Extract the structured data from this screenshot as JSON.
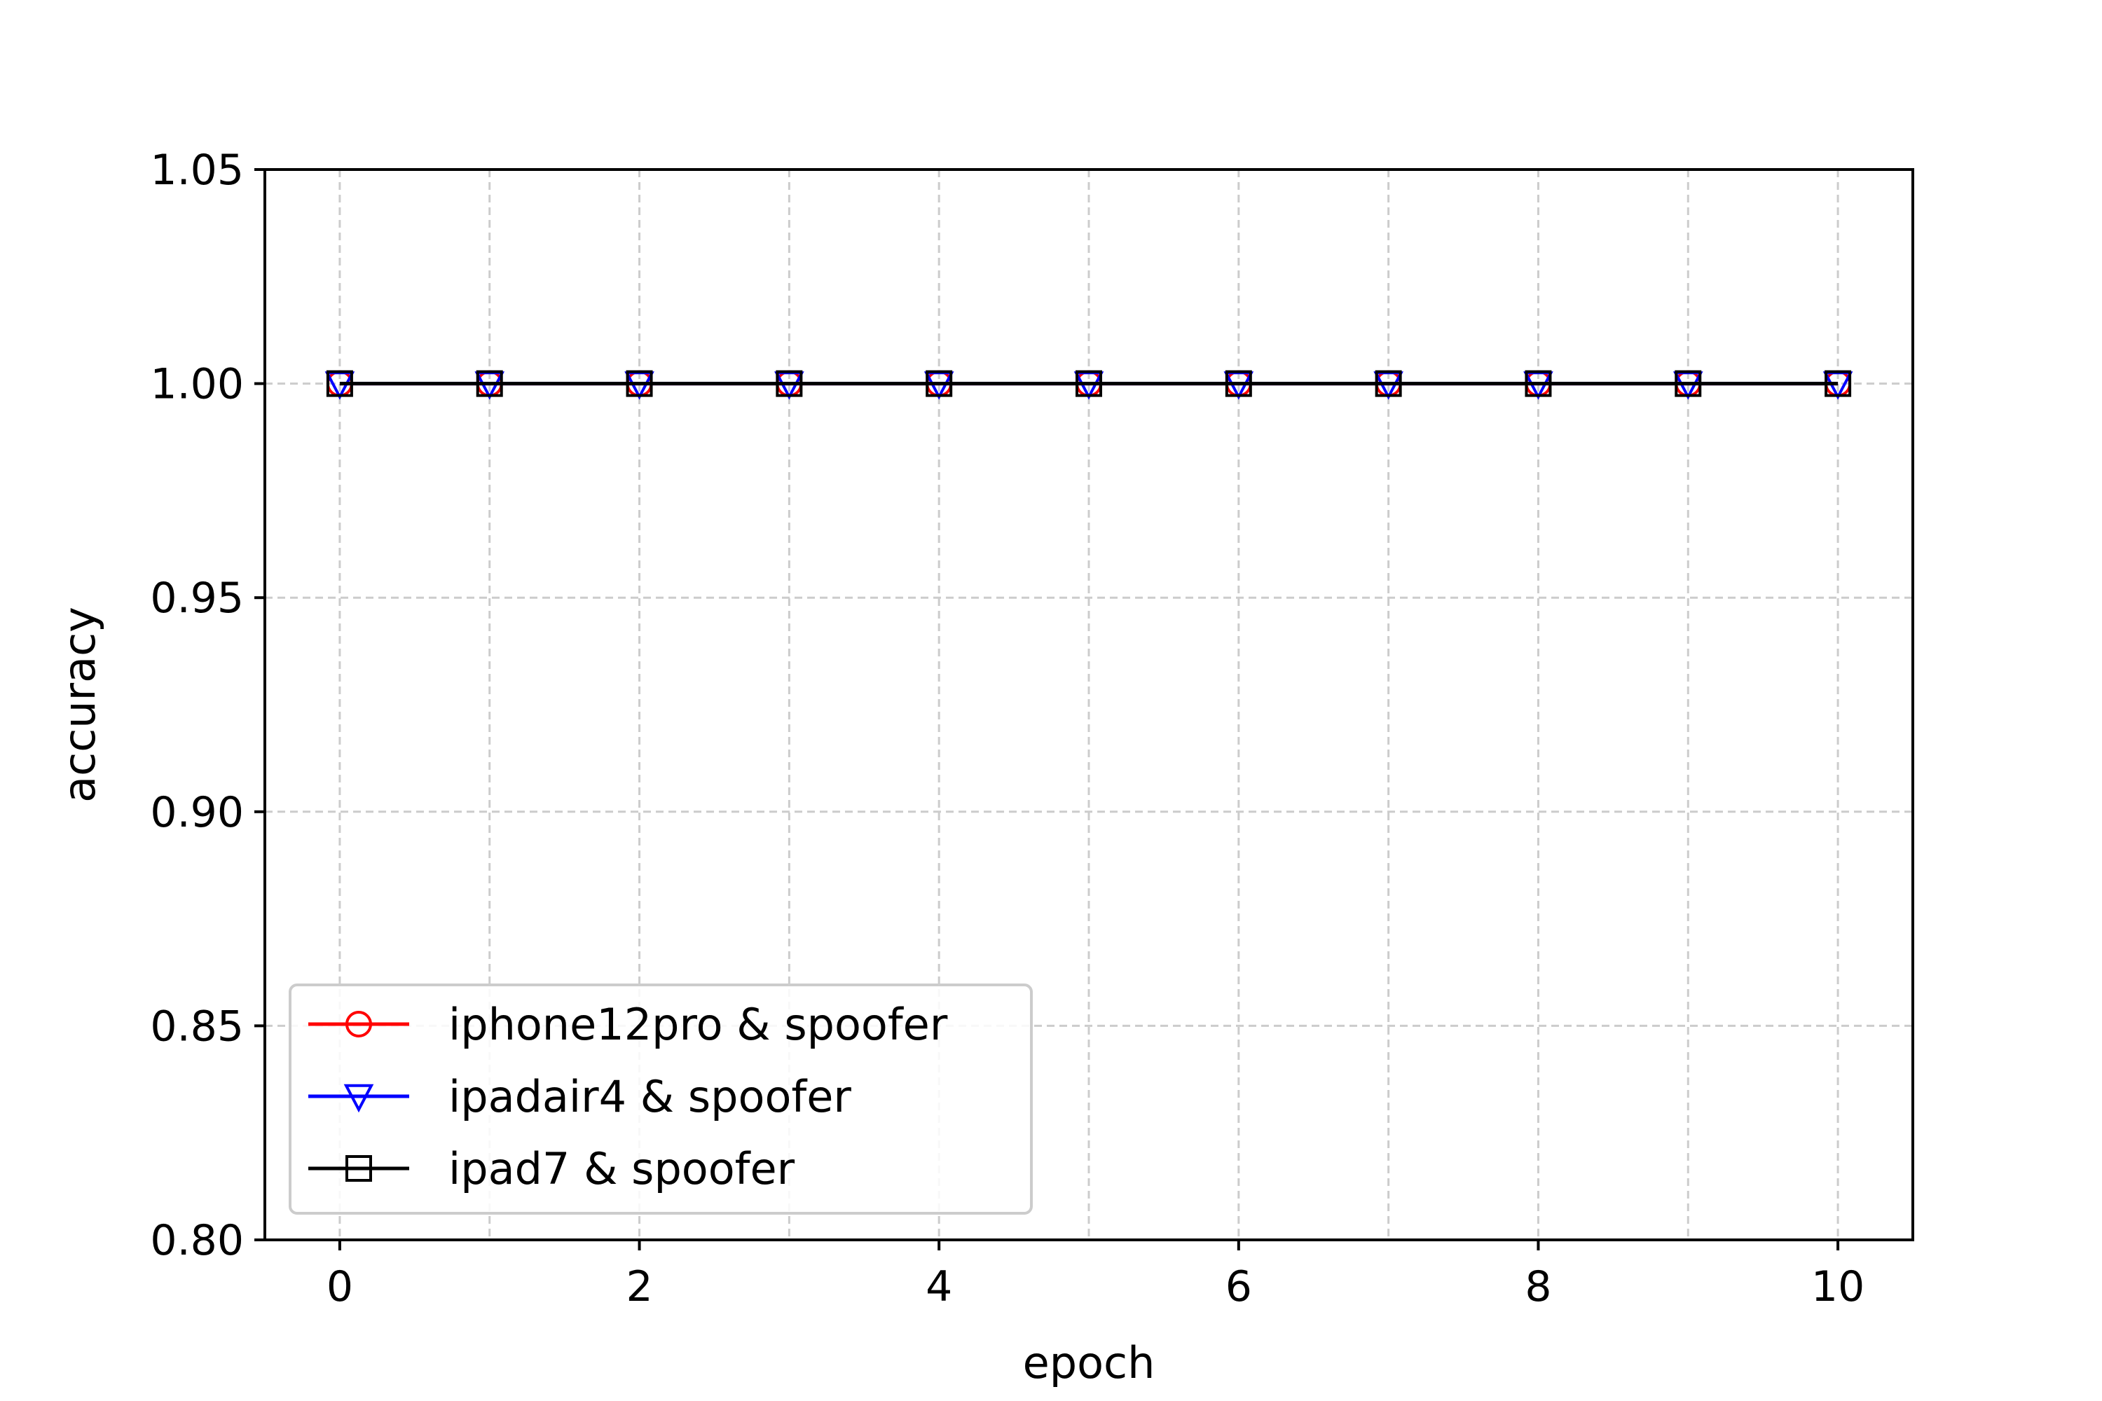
{
  "chart_data": {
    "type": "line",
    "title": "",
    "xlabel": "epoch",
    "ylabel": "accuracy",
    "xlim": [
      -0.5,
      10.5
    ],
    "ylim": [
      0.8,
      1.05
    ],
    "xticks": [
      0,
      2,
      4,
      6,
      8,
      10
    ],
    "yticks": [
      0.8,
      0.85,
      0.9,
      0.95,
      1.0,
      1.05
    ],
    "xtick_labels": [
      "0",
      "2",
      "4",
      "6",
      "8",
      "10"
    ],
    "ytick_labels": [
      "0.80",
      "0.85",
      "0.90",
      "0.95",
      "1.00",
      "1.05"
    ],
    "grid": true,
    "grid_style": "dashed",
    "grid_xticks": [
      0,
      1,
      2,
      3,
      4,
      5,
      6,
      7,
      8,
      9,
      10
    ],
    "legend_position": "lower-left",
    "x": [
      0,
      1,
      2,
      3,
      4,
      5,
      6,
      7,
      8,
      9,
      10
    ],
    "series": [
      {
        "name": "iphone12pro & spoofer",
        "color": "#ff0000",
        "marker": "circle",
        "values": [
          1.0,
          1.0,
          1.0,
          1.0,
          1.0,
          1.0,
          1.0,
          1.0,
          1.0,
          1.0,
          1.0
        ]
      },
      {
        "name": "ipadair4 & spoofer",
        "color": "#0000ff",
        "marker": "triangle-down",
        "values": [
          1.0,
          1.0,
          1.0,
          1.0,
          1.0,
          1.0,
          1.0,
          1.0,
          1.0,
          1.0,
          1.0
        ]
      },
      {
        "name": "ipad7 & spoofer",
        "color": "#000000",
        "marker": "square",
        "values": [
          1.0,
          1.0,
          1.0,
          1.0,
          1.0,
          1.0,
          1.0,
          1.0,
          1.0,
          1.0,
          1.0
        ]
      }
    ]
  }
}
